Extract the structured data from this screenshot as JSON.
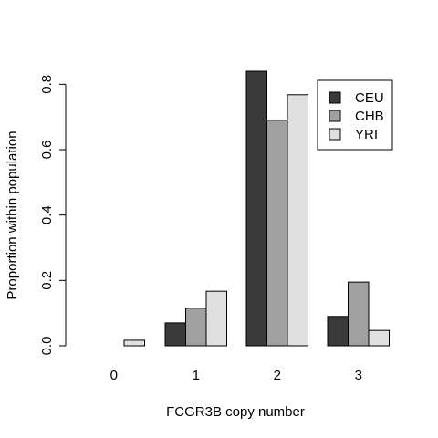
{
  "chart_data": {
    "type": "bar",
    "categories": [
      "0",
      "1",
      "2",
      "3"
    ],
    "series": [
      {
        "name": "CEU",
        "values": [
          0.0,
          0.07,
          0.84,
          0.09
        ],
        "color": "#3a3a3a"
      },
      {
        "name": "CHB",
        "values": [
          0.0,
          0.115,
          0.69,
          0.195
        ],
        "color": "#a0a0a0"
      },
      {
        "name": "YRI",
        "values": [
          0.017,
          0.167,
          0.768,
          0.047
        ],
        "color": "#e0e0e0"
      }
    ],
    "title": "",
    "xlabel": "FCGR3B copy number",
    "ylabel": "Proportion within population",
    "ylim": [
      0,
      0.84
    ],
    "yticks": [
      0.0,
      0.2,
      0.4,
      0.6,
      0.8
    ],
    "ytick_labels": [
      "0.0",
      "0.2",
      "0.4",
      "0.6",
      "0.8"
    ],
    "grid": false,
    "legend_position": "top-right"
  }
}
